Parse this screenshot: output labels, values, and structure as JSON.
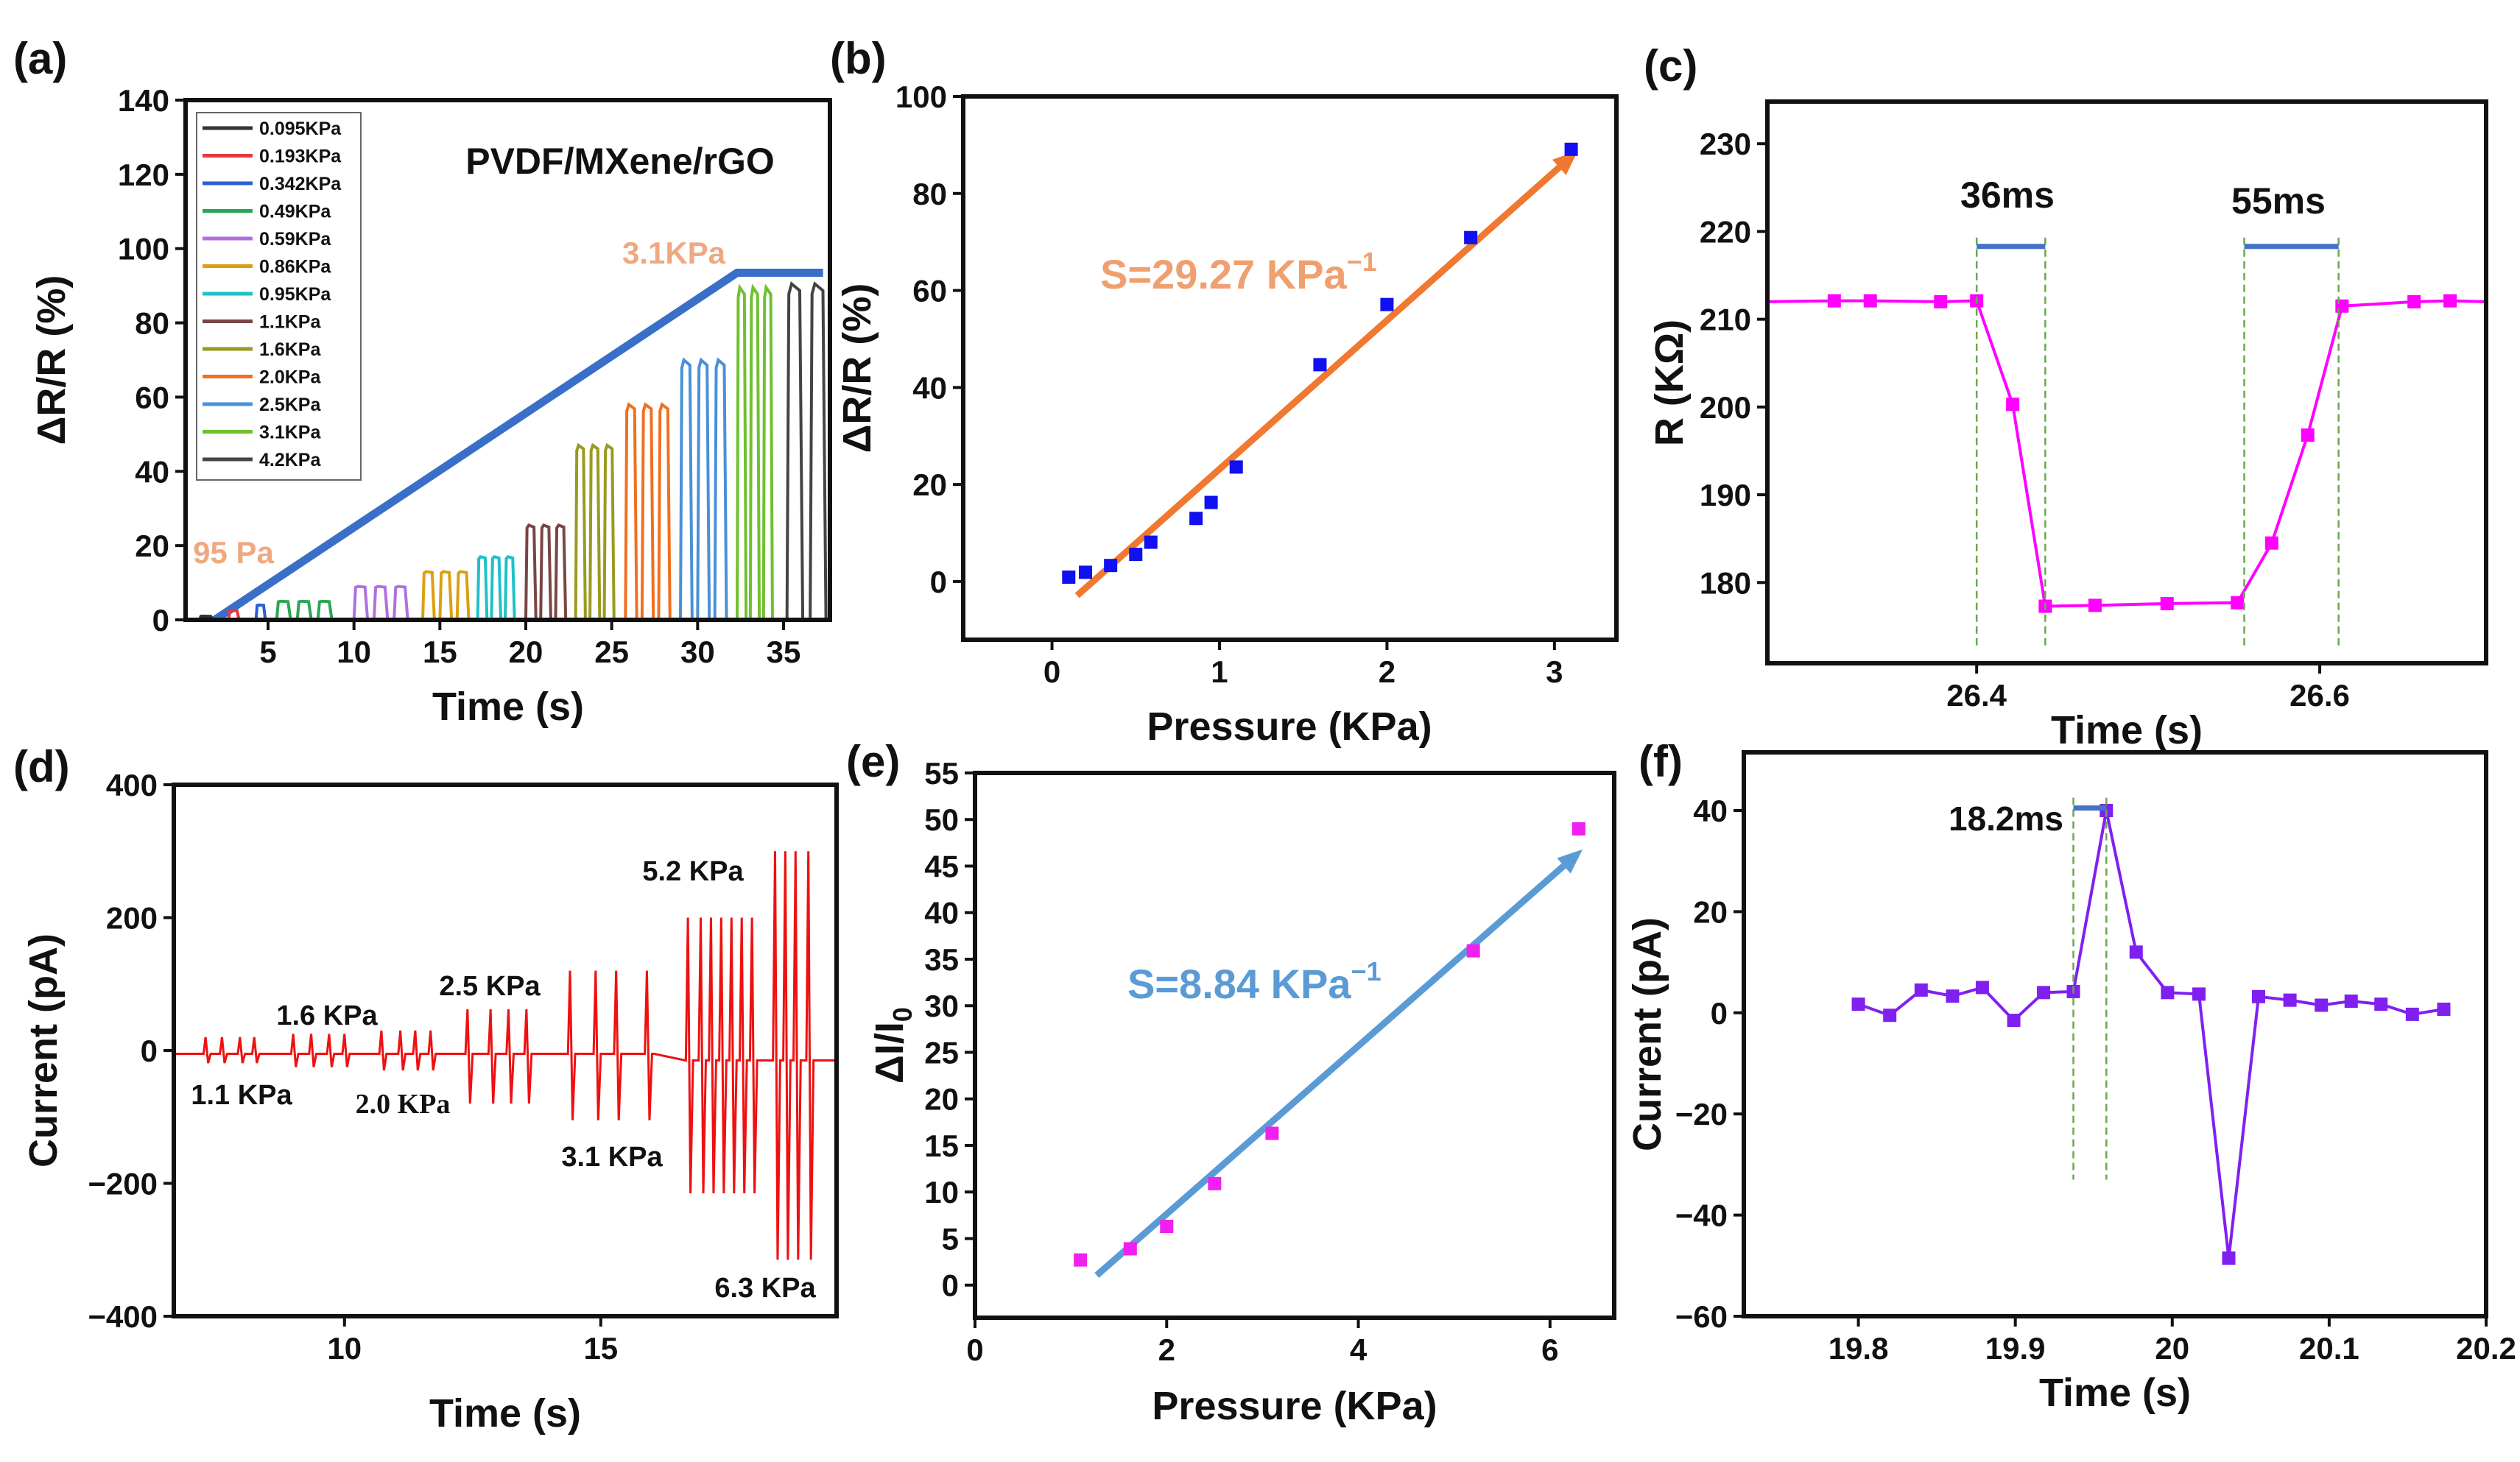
{
  "panel_labels": [
    "(a)",
    "(b)",
    "(c)",
    "(d)",
    "(e)",
    "(f)"
  ],
  "chart_data": [
    {
      "id": "a",
      "type": "line",
      "xlabel": "Time (s)",
      "ylabel": "ΔR/R (%)",
      "xlim": [
        0.2,
        37.7
      ],
      "ylim": [
        0,
        140
      ],
      "xticks": [
        5,
        10,
        15,
        20,
        25,
        30,
        35
      ],
      "yticks": [
        0,
        20,
        40,
        60,
        80,
        100,
        120,
        140
      ],
      "legend_placement": "top-left",
      "title_annotation": "PVDF/MXene/rGO",
      "annotations": [
        "3.1KPa",
        "95 Pa"
      ],
      "annotation_color": "#f0a880",
      "trend_line": {
        "color": "#3a6fc8",
        "points": [
          [
            1.9,
            0
          ],
          [
            32.3,
            93.5
          ],
          [
            37.3,
            93.5
          ]
        ]
      },
      "series": [
        {
          "name": "0.095KPa",
          "color": "#333333",
          "start": 1.0,
          "end": 2.2,
          "peak": 1,
          "count": 1
        },
        {
          "name": "0.193KPa",
          "color": "#e8383d",
          "start": 2.7,
          "end": 3.6,
          "peak": 2.5,
          "count": 1
        },
        {
          "name": "0.342KPa",
          "color": "#2b5fd0",
          "start": 4.3,
          "end": 5.1,
          "peak": 4,
          "count": 1
        },
        {
          "name": "0.49KPa",
          "color": "#2aa655",
          "start": 5.5,
          "end": 9.1,
          "peak": 5,
          "count": 3
        },
        {
          "name": "0.59KPa",
          "color": "#b070e0",
          "start": 10.0,
          "end": 13.5,
          "peak": 9,
          "count": 3
        },
        {
          "name": "0.86KPa",
          "color": "#d9a010",
          "start": 14.0,
          "end": 17.0,
          "peak": 13,
          "count": 3
        },
        {
          "name": "0.95KPa",
          "color": "#20c0c8",
          "start": 17.2,
          "end": 19.6,
          "peak": 17,
          "count": 3
        },
        {
          "name": "1.1KPa",
          "color": "#7a4545",
          "start": 20.0,
          "end": 22.6,
          "peak": 25.5,
          "count": 3
        },
        {
          "name": "1.6KPa",
          "color": "#9a9a20",
          "start": 22.9,
          "end": 25.4,
          "peak": 47,
          "count": 3
        },
        {
          "name": "2.0KPa",
          "color": "#f07020",
          "start": 25.8,
          "end": 28.7,
          "peak": 58,
          "count": 3
        },
        {
          "name": "2.5KPa",
          "color": "#4a90d8",
          "start": 29.0,
          "end": 32.0,
          "peak": 70,
          "count": 3
        },
        {
          "name": "3.1KPa",
          "color": "#70c030",
          "start": 32.3,
          "end": 34.6,
          "peak": 89.5,
          "count": 3
        },
        {
          "name": "4.2KPa",
          "color": "#444444",
          "start": 35.2,
          "end": 37.9,
          "peak": 90.5,
          "count": 2
        }
      ]
    },
    {
      "id": "b",
      "type": "scatter",
      "xlabel": "Pressure (KPa)",
      "ylabel": "ΔR/R (%)",
      "xlim": [
        -0.53,
        3.37
      ],
      "ylim": [
        -12,
        100
      ],
      "xticks": [
        0,
        1,
        2,
        3
      ],
      "yticks": [
        0,
        20,
        40,
        60,
        80,
        100
      ],
      "point_color": "#1010f0",
      "x": [
        0.1,
        0.2,
        0.35,
        0.5,
        0.59,
        0.86,
        0.95,
        1.1,
        1.6,
        2.0,
        2.5,
        3.1
      ],
      "y": [
        0.9,
        1.9,
        3.3,
        5.6,
        8.1,
        13.0,
        16.3,
        23.6,
        44.7,
        57.1,
        70.9,
        89.1
      ],
      "fit_arrow": {
        "color": "#f07830",
        "from": [
          0.15,
          -2.9
        ],
        "to": [
          3.14,
          88.8
        ]
      },
      "annotation": {
        "main": "S=29.27",
        "unit": "KPa",
        "sup": "−1",
        "color": "#f0a070"
      }
    },
    {
      "id": "c",
      "type": "line",
      "xlabel": "Time (s)",
      "ylabel": "R (KΩ)",
      "xlim": [
        26.278,
        26.697
      ],
      "ylim": [
        170.8,
        234.8
      ],
      "xticks": [
        26.4,
        26.6
      ],
      "yticks": [
        180,
        190,
        200,
        210,
        220,
        230
      ],
      "line_color": "#ff00ff",
      "x": [
        26.278,
        26.317,
        26.338,
        26.379,
        26.4,
        26.421,
        26.44,
        26.469,
        26.511,
        26.552,
        26.572,
        26.593,
        26.613,
        26.655,
        26.676,
        26.697
      ],
      "y": [
        212,
        212.1,
        212.1,
        212,
        212.1,
        200.3,
        177.3,
        177.4,
        177.6,
        177.7,
        184.5,
        196.8,
        211.5,
        212,
        212.1,
        212
      ],
      "markers_from_index": 1,
      "intervals": [
        {
          "label": "36ms",
          "from": 26.4,
          "to": 26.44,
          "level": 218.3
        },
        {
          "label": "55ms",
          "from": 26.556,
          "to": 26.611,
          "level": 218.3
        }
      ],
      "interval_color": "#4472c4",
      "guide_color": "#6aa84f"
    },
    {
      "id": "d",
      "type": "line",
      "xlabel": "Time (s)",
      "ylabel": "Current (pA)",
      "xlim": [
        6.67,
        19.6
      ],
      "ylim": [
        -400,
        400
      ],
      "xticks": [
        10,
        15
      ],
      "yticks": [
        -400,
        -200,
        0,
        200,
        400
      ],
      "line_color": "#ee1111",
      "groups": [
        {
          "label": "1.1 KPa",
          "times": [
            7.29,
            7.61,
            7.96,
            8.24
          ],
          "pos": 20,
          "neg": -19
        },
        {
          "label": "1.6 KPa",
          "times": [
            9.0,
            9.35,
            9.7,
            10.0
          ],
          "pos": 25,
          "neg": -25
        },
        {
          "label": "2.0 KPa",
          "times": [
            10.72,
            11.09,
            11.38,
            11.68
          ],
          "pos": 30,
          "neg": -30
        },
        {
          "label": "2.5 KPa",
          "times": [
            12.4,
            12.85,
            13.2,
            13.55
          ],
          "pos": 62,
          "neg": -80
        },
        {
          "label": "3.1 KPa",
          "times": [
            14.4,
            14.9,
            15.3,
            15.9
          ],
          "pos": 120,
          "neg": -105
        },
        {
          "label": "5.2 KPa",
          "times": [
            16.7,
            16.95,
            17.15,
            17.35,
            17.55,
            17.75,
            17.95
          ],
          "pos": 200,
          "neg": -215
        },
        {
          "label": "6.3 KPa",
          "times": [
            18.4,
            18.6,
            18.8,
            19.05
          ],
          "pos": 300,
          "neg": -315
        }
      ]
    },
    {
      "id": "e",
      "type": "scatter",
      "xlabel": "Pressure (KPa)",
      "ylabel": "ΔI/I",
      "ylabel_sub": "0",
      "xlim": [
        0,
        6.67
      ],
      "ylim": [
        -3.5,
        55
      ],
      "xticks": [
        0,
        2,
        4,
        6
      ],
      "yticks": [
        0,
        5,
        10,
        15,
        20,
        25,
        30,
        35,
        40,
        45,
        50,
        55
      ],
      "point_color": "#f020f0",
      "x": [
        1.1,
        1.62,
        2.0,
        2.5,
        3.1,
        5.2,
        6.3
      ],
      "y": [
        2.7,
        3.9,
        6.3,
        10.9,
        16.3,
        35.9,
        49.0
      ],
      "fit_arrow": {
        "color": "#5b9bd5",
        "from": [
          1.27,
          1.05
        ],
        "to": [
          6.34,
          46.8
        ]
      },
      "annotation": {
        "main": "S=8.84",
        "unit": "KPa",
        "sup": "−1",
        "color": "#5b9bd5"
      }
    },
    {
      "id": "f",
      "type": "line",
      "xlabel": "Time (s)",
      "ylabel": "Current (pA)",
      "xlim": [
        19.727,
        20.2
      ],
      "ylim": [
        -60,
        51.5
      ],
      "xticks": [
        19.8,
        19.9,
        20.0,
        20.1,
        20.2
      ],
      "yticks": [
        -60,
        -40,
        -20,
        0,
        20,
        40
      ],
      "line_color": "#8020f0",
      "x": [
        19.8,
        19.82,
        19.84,
        19.86,
        19.879,
        19.899,
        19.918,
        19.937,
        19.958,
        19.977,
        19.997,
        20.017,
        20.036,
        20.055,
        20.075,
        20.095,
        20.114,
        20.133,
        20.153,
        20.173
      ],
      "y": [
        1.7,
        -0.5,
        4.5,
        3.3,
        5.0,
        -1.5,
        4.0,
        4.2,
        40.0,
        12.0,
        4.0,
        3.7,
        -48.5,
        3.2,
        2.5,
        1.5,
        2.3,
        1.7,
        -0.3,
        0.7
      ],
      "intervals": [
        {
          "label": "18.2ms",
          "from": 19.937,
          "to": 19.958,
          "level": 40.5
        }
      ],
      "interval_color": "#4472c4",
      "guide_color": "#6aa84f"
    }
  ]
}
